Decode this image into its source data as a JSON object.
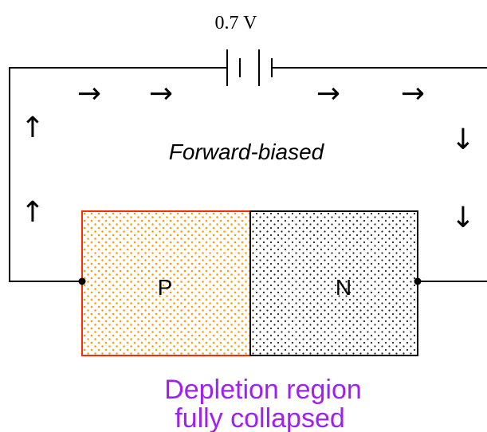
{
  "battery": {
    "voltage_label": "0.7 V"
  },
  "annotation": {
    "bias_label": "Forward-biased",
    "depletion_line1": "Depletion region",
    "depletion_line2": "fully collapsed"
  },
  "junction": {
    "p_label": "P",
    "n_label": "N"
  },
  "colors": {
    "wire": "#000000",
    "p_region_border": "#ff2a00",
    "p_region_dots": "#ff9900",
    "n_region_dots": "#222222",
    "depletion_text": "#a020f0"
  },
  "current_arrows": {
    "top_left": "→",
    "top_right": "→",
    "right": "↓",
    "left": "↑"
  }
}
